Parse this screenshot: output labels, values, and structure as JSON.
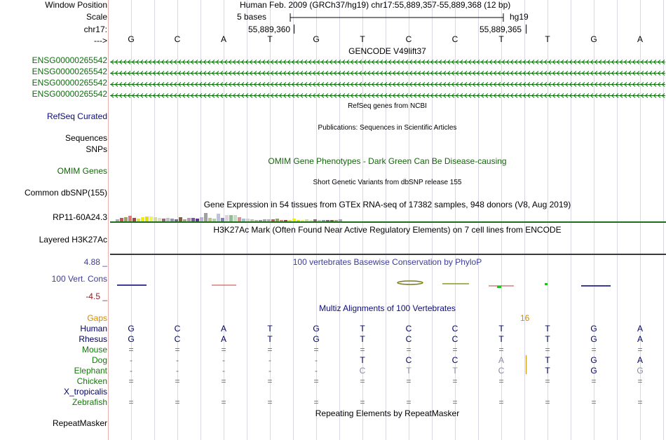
{
  "header": {
    "window_position_label": "Window Position",
    "scale_label": "Scale",
    "chrom_label": "chr17:",
    "arrow_label": "--->",
    "assembly_text": "Human Feb. 2009 (GRCh37/hg19)   chr17:55,889,357-55,889,368 (12 bp)",
    "scale_text": "5 bases",
    "scale_db": "hg19",
    "coord1": "55,889,360",
    "coord2": "55,889,365",
    "bases": [
      "G",
      "C",
      "A",
      "T",
      "G",
      "T",
      "C",
      "C",
      "T",
      "T",
      "G",
      "A"
    ]
  },
  "tracks": {
    "gencode_title": "GENCODE V49lift37",
    "gencode_items": [
      "ENSG00000265542",
      "ENSG00000265542",
      "ENSG00000265542",
      "ENSG00000265542"
    ],
    "refseq_label": "RefSeq Curated",
    "refseq_title": "RefSeq genes from NCBI",
    "publications_title": "Publications: Sequences in Scientific Articles",
    "sequences_label": "Sequences",
    "snps_label": "SNPs",
    "omim_title": "OMIM Gene Phenotypes - Dark Green Can Be Disease-causing",
    "omim_label": "OMIM Genes",
    "dbsnp_title": "Short Genetic Variants from dbSNP release 155",
    "dbsnp_label": "Common dbSNP(155)",
    "gtex_title": "Gene Expression in 54 tissues from GTEx RNA-seq of 17382 samples, 948 donors (V8, Aug 2019)",
    "gtex_label": "RP11-60A24.3",
    "h3k27_title": "H3K27Ac Mark (Often Found Near Active Regulatory Elements) on 7 cell lines from ENCODE",
    "h3k27_label": "Layered H3K27Ac",
    "phylop_max": "4.88 _",
    "phylop_min": "-4.5 _",
    "phylop_label": "100 Vert. Cons",
    "phylop_title": "100 vertebrates Basewise Conservation by PhyloP",
    "multiz_title": "Multiz Alignments of 100 Vertebrates",
    "gaps_label": "Gaps",
    "gap_count": "16",
    "repeat_title": "Repeating Elements by RepeatMasker",
    "repeat_label": "RepeatMasker"
  },
  "species": [
    {
      "name": "Human",
      "bases": [
        "G",
        "C",
        "A",
        "T",
        "G",
        "T",
        "C",
        "C",
        "T",
        "T",
        "G",
        "A"
      ]
    },
    {
      "name": "Rhesus",
      "bases": [
        "G",
        "C",
        "A",
        "T",
        "G",
        "T",
        "C",
        "C",
        "T",
        "T",
        "G",
        "A"
      ]
    },
    {
      "name": "Mouse",
      "bases": [
        "=",
        "=",
        "=",
        "=",
        "=",
        "=",
        "=",
        "=",
        "=",
        "=",
        "=",
        "="
      ]
    },
    {
      "name": "Dog",
      "bases": [
        "-",
        "-",
        "-",
        "-",
        "-",
        "T",
        "C",
        "C",
        "A",
        "T",
        "G",
        "A"
      ]
    },
    {
      "name": "Elephant",
      "bases": [
        "-",
        "-",
        "-",
        "-",
        "-",
        "C",
        "T",
        "T",
        "C",
        "T",
        "G",
        "G"
      ]
    },
    {
      "name": "Chicken",
      "bases": [
        "=",
        "=",
        "=",
        "=",
        "=",
        "=",
        "=",
        "=",
        "=",
        "=",
        "=",
        "="
      ]
    },
    {
      "name": "X_tropicalis",
      "bases": [
        "",
        "",
        "",
        "",
        "",
        "",
        "",
        "",
        "",
        "",
        "",
        ""
      ]
    },
    {
      "name": "Zebrafish",
      "bases": [
        "=",
        "=",
        "=",
        "=",
        "=",
        "=",
        "=",
        "=",
        "=",
        "=",
        "=",
        "="
      ]
    }
  ],
  "colors": {
    "gencode_green": "#0c6e0c",
    "refseq_navy": "#0c0c78",
    "omim_green": "#14640a",
    "phylop_blue": "#3c3c96",
    "phylop_red": "#8c1e1e",
    "gaps_orange": "#d28c00",
    "species_green": "#14780a",
    "species_navy": "#000064"
  }
}
